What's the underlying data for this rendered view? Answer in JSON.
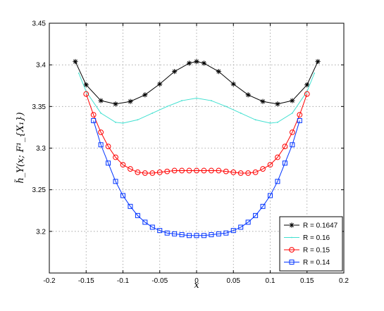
{
  "chart_data": {
    "type": "line",
    "xlabel": "x",
    "ylabel": "h̃_Y(x; F¹_{X₁})",
    "xlim": [
      -0.2,
      0.2
    ],
    "ylim": [
      3.15,
      3.45
    ],
    "xticks": [
      -0.2,
      -0.15,
      -0.1,
      -0.05,
      0,
      0.05,
      0.1,
      0.15,
      0.2
    ],
    "xtick_labels": [
      "-0.2",
      "-0.15",
      "-0.1",
      "-0.05",
      "0",
      "0.05",
      "0.1",
      "0.15",
      "0.2"
    ],
    "yticks": [
      3.2,
      3.25,
      3.3,
      3.35,
      3.4,
      3.45
    ],
    "ytick_labels": [
      "3.2",
      "3.25",
      "3.3",
      "3.35",
      "3.4",
      "3.45"
    ],
    "grid": true,
    "legend_position": "bottom-right",
    "series": [
      {
        "name": "R = 0.1647",
        "color": "#000000",
        "marker": "asterisk",
        "x": [
          -0.1647,
          -0.15,
          -0.13,
          -0.11,
          -0.09,
          -0.07,
          -0.05,
          -0.03,
          -0.01,
          0,
          0.01,
          0.03,
          0.05,
          0.07,
          0.09,
          0.11,
          0.13,
          0.15,
          0.1647
        ],
        "values": [
          3.404,
          3.376,
          3.357,
          3.353,
          3.356,
          3.364,
          3.377,
          3.392,
          3.402,
          3.404,
          3.402,
          3.392,
          3.377,
          3.364,
          3.356,
          3.353,
          3.357,
          3.376,
          3.404
        ]
      },
      {
        "name": "R = 0.16",
        "color": "#40e0d0",
        "marker": "dot",
        "x": [
          -0.16,
          -0.15,
          -0.13,
          -0.11,
          -0.1,
          -0.08,
          -0.06,
          -0.04,
          -0.02,
          0,
          0.02,
          0.04,
          0.06,
          0.08,
          0.1,
          0.11,
          0.13,
          0.15,
          0.16
        ],
        "values": [
          3.39,
          3.368,
          3.342,
          3.331,
          3.33,
          3.334,
          3.342,
          3.35,
          3.357,
          3.36,
          3.357,
          3.35,
          3.342,
          3.334,
          3.33,
          3.331,
          3.342,
          3.368,
          3.39
        ]
      },
      {
        "name": "R = 0.15",
        "color": "#ff0000",
        "marker": "circle",
        "x": [
          -0.15,
          -0.14,
          -0.13,
          -0.12,
          -0.11,
          -0.1,
          -0.09,
          -0.08,
          -0.07,
          -0.06,
          -0.05,
          -0.04,
          -0.03,
          -0.02,
          -0.01,
          0,
          0.01,
          0.02,
          0.03,
          0.04,
          0.05,
          0.06,
          0.07,
          0.08,
          0.09,
          0.1,
          0.11,
          0.12,
          0.13,
          0.14,
          0.15
        ],
        "values": [
          3.365,
          3.34,
          3.319,
          3.302,
          3.289,
          3.28,
          3.275,
          3.271,
          3.27,
          3.27,
          3.271,
          3.272,
          3.273,
          3.273,
          3.273,
          3.273,
          3.273,
          3.273,
          3.273,
          3.272,
          3.271,
          3.27,
          3.27,
          3.271,
          3.275,
          3.28,
          3.289,
          3.302,
          3.319,
          3.34,
          3.365
        ]
      },
      {
        "name": "R = 0.14",
        "color": "#0033ff",
        "marker": "square",
        "x": [
          -0.14,
          -0.13,
          -0.12,
          -0.11,
          -0.1,
          -0.09,
          -0.08,
          -0.07,
          -0.06,
          -0.05,
          -0.04,
          -0.03,
          -0.02,
          -0.01,
          0,
          0.01,
          0.02,
          0.03,
          0.04,
          0.05,
          0.06,
          0.07,
          0.08,
          0.09,
          0.1,
          0.11,
          0.12,
          0.13,
          0.14
        ],
        "values": [
          3.333,
          3.304,
          3.282,
          3.26,
          3.243,
          3.23,
          3.219,
          3.211,
          3.205,
          3.201,
          3.198,
          3.197,
          3.196,
          3.195,
          3.195,
          3.195,
          3.196,
          3.197,
          3.198,
          3.201,
          3.205,
          3.211,
          3.219,
          3.23,
          3.243,
          3.26,
          3.282,
          3.304,
          3.333
        ]
      }
    ]
  }
}
